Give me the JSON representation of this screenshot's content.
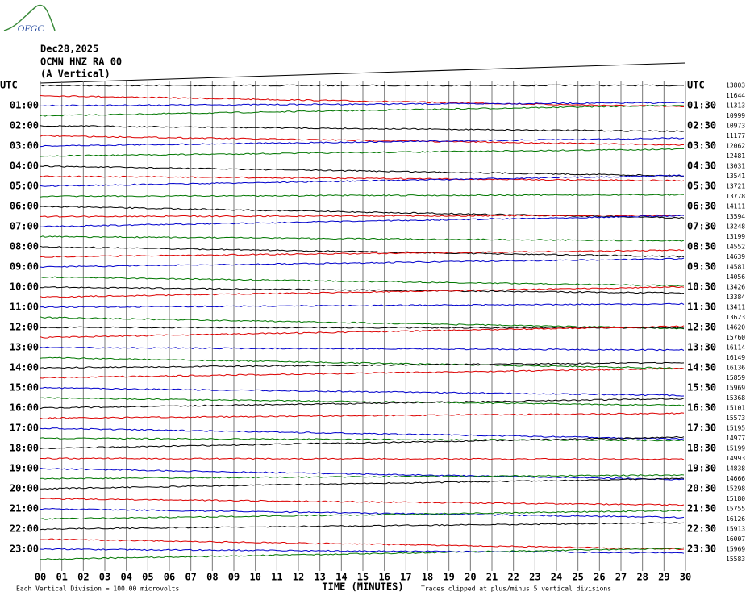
{
  "header": {
    "logo": "OFGC",
    "date": "Dec28,2025",
    "station": "OCMN HNZ RA 00",
    "component": "(A Vertical)"
  },
  "left_labels": [
    "UTC",
    "01:00",
    "02:00",
    "03:00",
    "04:00",
    "05:00",
    "06:00",
    "07:00",
    "08:00",
    "09:00",
    "10:00",
    "11:00",
    "12:00",
    "13:00",
    "14:00",
    "15:00",
    "16:00",
    "17:00",
    "18:00",
    "19:00",
    "20:00",
    "21:00",
    "22:00",
    "23:00"
  ],
  "right_labels": [
    "UTC",
    "01:30",
    "02:30",
    "03:30",
    "04:30",
    "05:30",
    "06:30",
    "07:30",
    "08:30",
    "09:30",
    "10:30",
    "11:30",
    "12:30",
    "13:30",
    "14:30",
    "15:30",
    "16:30",
    "17:30",
    "18:30",
    "19:30",
    "20:30",
    "21:30",
    "22:30",
    "23:30"
  ],
  "counts": [
    "13803",
    "11644",
    "11313",
    "10999",
    "10973",
    "11177",
    "12062",
    "12481",
    "13031",
    "13541",
    "13721",
    "13778",
    "14111",
    "13594",
    "13248",
    "13199",
    "14552",
    "14639",
    "14581",
    "14056",
    "13426",
    "13384",
    "13411",
    "13623",
    "14620",
    "15760",
    "16114",
    "16149",
    "16136",
    "15859",
    "15969",
    "15368",
    "15101",
    "15573",
    "15195",
    "14977",
    "15199",
    "14993",
    "14838",
    "14666",
    "15298",
    "15180",
    "15755",
    "16126",
    "15913",
    "16007",
    "15969",
    "15583"
  ],
  "x_ticks": [
    "00",
    "01",
    "02",
    "03",
    "04",
    "05",
    "06",
    "07",
    "08",
    "09",
    "10",
    "11",
    "12",
    "13",
    "14",
    "15",
    "16",
    "17",
    "18",
    "19",
    "20",
    "21",
    "22",
    "23",
    "24",
    "25",
    "26",
    "27",
    "28",
    "29",
    "30"
  ],
  "x_label": "TIME (MINUTES)",
  "footer_left": "Each Vertical Division =  100.00 microvolts",
  "footer_right": "Traces clipped at plus/minus 5 vertical divisions"
}
